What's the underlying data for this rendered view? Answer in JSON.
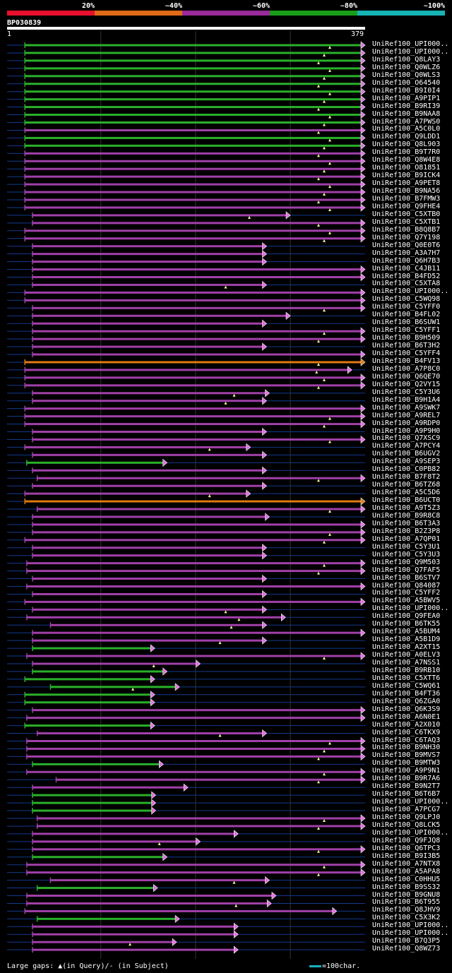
{
  "legend": {
    "segments": [
      {
        "label": "20%",
        "color": "#e8102e"
      },
      {
        "label": "~40%",
        "color": "#e06b16"
      },
      {
        "label": "~60%",
        "color": "#992a99"
      },
      {
        "label": "~80%",
        "color": "#1a9e1a"
      },
      {
        "label": "~100%",
        "color": "#16b4b4"
      }
    ]
  },
  "query": {
    "id": "BP030839",
    "start": "1",
    "end": "379"
  },
  "footer": {
    "gaps_text": "Large gaps: ▲(in Query)/- (in Subject)",
    "scale_text": "=100char."
  },
  "colors": {
    "green": "#2ab02a",
    "purple": "#a040a8",
    "orange": "#e07a10",
    "background": "#000000",
    "guide": "#123a8c"
  },
  "chart_data": {
    "type": "alignment",
    "query_length": 379,
    "hits": [
      {
        "name": "UniRef100_UPI000..",
        "s": 20,
        "e": 379,
        "c": "green",
        "tri": 1
      },
      {
        "name": "UniRef100_UPI000..",
        "s": 20,
        "e": 379,
        "c": "green",
        "tri": 1
      },
      {
        "name": "UniRef100_Q8LAY3",
        "s": 20,
        "e": 379,
        "c": "green",
        "tri": 1
      },
      {
        "name": "UniRef100_Q0WLZ6",
        "s": 20,
        "e": 379,
        "c": "green",
        "tri": 1
      },
      {
        "name": "UniRef100_Q0WLS3",
        "s": 20,
        "e": 379,
        "c": "green",
        "tri": 1
      },
      {
        "name": "UniRef100_O64540",
        "s": 20,
        "e": 379,
        "c": "green",
        "tri": 1
      },
      {
        "name": "UniRef100_B9I0I4",
        "s": 20,
        "e": 379,
        "c": "green",
        "tri": 1
      },
      {
        "name": "UniRef100_A9PIP1",
        "s": 20,
        "e": 379,
        "c": "green",
        "tri": 1
      },
      {
        "name": "UniRef100_B9RI39",
        "s": 20,
        "e": 379,
        "c": "green",
        "tri": 1
      },
      {
        "name": "UniRef100_B9NAA8",
        "s": 20,
        "e": 379,
        "c": "green",
        "tri": 1
      },
      {
        "name": "UniRef100_A7PWS0",
        "s": 20,
        "e": 379,
        "c": "green",
        "tri": 1
      },
      {
        "name": "UniRef100_A5C0L0",
        "s": 20,
        "e": 379,
        "c": "purple",
        "tri": 1
      },
      {
        "name": "UniRef100_Q9LDD1",
        "s": 20,
        "e": 379,
        "c": "green",
        "tri": 1
      },
      {
        "name": "UniRef100_Q8L903",
        "s": 20,
        "e": 379,
        "c": "green",
        "tri": 1
      },
      {
        "name": "UniRef100_B9T7R0",
        "s": 20,
        "e": 379,
        "c": "purple",
        "tri": 1
      },
      {
        "name": "UniRef100_Q8W4E8",
        "s": 20,
        "e": 379,
        "c": "purple",
        "tri": 1
      },
      {
        "name": "UniRef100_O81851",
        "s": 20,
        "e": 379,
        "c": "purple",
        "tri": 1
      },
      {
        "name": "UniRef100_B9ICK4",
        "s": 20,
        "e": 379,
        "c": "purple",
        "tri": 1
      },
      {
        "name": "UniRef100_A9PET8",
        "s": 20,
        "e": 379,
        "c": "purple",
        "tri": 1
      },
      {
        "name": "UniRef100_B9NA56",
        "s": 20,
        "e": 379,
        "c": "purple",
        "tri": 1
      },
      {
        "name": "UniRef100_B7FMW3",
        "s": 20,
        "e": 379,
        "c": "purple",
        "tri": 1
      },
      {
        "name": "UniRef100_Q9FHE4",
        "s": 20,
        "e": 379,
        "c": "purple",
        "tri": 1
      },
      {
        "name": "UniRef100_C5XTB0",
        "s": 28,
        "e": 300,
        "c": "purple",
        "tri": 1
      },
      {
        "name": "UniRef100_C5XTB1",
        "s": 28,
        "e": 379,
        "c": "purple",
        "tri": 1
      },
      {
        "name": "UniRef100_B8Q8B7",
        "s": 20,
        "e": 379,
        "c": "purple",
        "tri": 1
      },
      {
        "name": "UniRef100_Q7Y198",
        "s": 20,
        "e": 379,
        "c": "purple",
        "tri": 1
      },
      {
        "name": "UniRef100_Q0E0T6",
        "s": 28,
        "e": 275,
        "c": "purple",
        "tri": 0
      },
      {
        "name": "UniRef100_A3A7H7",
        "s": 28,
        "e": 275,
        "c": "purple",
        "tri": 0
      },
      {
        "name": "UniRef100_Q6H7B3",
        "s": 28,
        "e": 275,
        "c": "purple",
        "tri": 0
      },
      {
        "name": "UniRef100_C4JB11",
        "s": 28,
        "e": 379,
        "c": "purple",
        "tri": 0
      },
      {
        "name": "UniRef100_B4FD52",
        "s": 28,
        "e": 379,
        "c": "purple",
        "tri": 0
      },
      {
        "name": "UniRef100_C5XTA8",
        "s": 28,
        "e": 275,
        "c": "purple",
        "tri": 1
      },
      {
        "name": "UniRef100_UPI000..",
        "s": 20,
        "e": 379,
        "c": "purple",
        "tri": 0
      },
      {
        "name": "UniRef100_C5WQ98",
        "s": 20,
        "e": 379,
        "c": "purple",
        "tri": 0
      },
      {
        "name": "UniRef100_C5YFF0",
        "s": 28,
        "e": 379,
        "c": "purple",
        "tri": 1
      },
      {
        "name": "UniRef100_B4FL02",
        "s": 28,
        "e": 300,
        "c": "purple",
        "tri": 0
      },
      {
        "name": "UniRef100_B6SUW1",
        "s": 28,
        "e": 275,
        "c": "purple",
        "tri": 0
      },
      {
        "name": "UniRef100_C5YFF1",
        "s": 28,
        "e": 379,
        "c": "purple",
        "tri": 1
      },
      {
        "name": "UniRef100_B9H509",
        "s": 28,
        "e": 379,
        "c": "purple",
        "tri": 1
      },
      {
        "name": "UniRef100_B6T3H2",
        "s": 28,
        "e": 275,
        "c": "purple",
        "tri": 0
      },
      {
        "name": "UniRef100_C5YFF4",
        "s": 28,
        "e": 379,
        "c": "purple",
        "tri": 0
      },
      {
        "name": "UniRef100_B4FV13",
        "s": 20,
        "e": 379,
        "c": "orange",
        "tri": 1
      },
      {
        "name": "UniRef100_A7P8C0",
        "s": 20,
        "e": 365,
        "c": "purple",
        "tri": 1
      },
      {
        "name": "UniRef100_Q6QE70",
        "s": 20,
        "e": 379,
        "c": "purple",
        "tri": 1
      },
      {
        "name": "UniRef100_Q2VY15",
        "s": 20,
        "e": 379,
        "c": "purple",
        "tri": 1
      },
      {
        "name": "UniRef100_C5Y3U6",
        "s": 28,
        "e": 278,
        "c": "purple",
        "tri": 1
      },
      {
        "name": "UniRef100_B9H1A4",
        "s": 28,
        "e": 275,
        "c": "purple",
        "tri": 1
      },
      {
        "name": "UniRef100_A9SWK7",
        "s": 20,
        "e": 379,
        "c": "purple",
        "tri": 0
      },
      {
        "name": "UniRef100_A9REL7",
        "s": 20,
        "e": 379,
        "c": "purple",
        "tri": 1
      },
      {
        "name": "UniRef100_A9RDP0",
        "s": 20,
        "e": 379,
        "c": "purple",
        "tri": 1
      },
      {
        "name": "UniRef100_A9P9H0",
        "s": 28,
        "e": 275,
        "c": "purple",
        "tri": 0
      },
      {
        "name": "UniRef100_Q7XSC9",
        "s": 28,
        "e": 379,
        "c": "purple",
        "tri": 1
      },
      {
        "name": "UniRef100_A7PCY4",
        "s": 20,
        "e": 258,
        "c": "purple",
        "tri": 1
      },
      {
        "name": "UniRef100_B6UGV2",
        "s": 28,
        "e": 275,
        "c": "purple",
        "tri": 0
      },
      {
        "name": "UniRef100_A9SEP3",
        "s": 22,
        "e": 170,
        "c": "green",
        "tri": 0
      },
      {
        "name": "UniRef100_C0PB82",
        "s": 28,
        "e": 275,
        "c": "purple",
        "tri": 0
      },
      {
        "name": "UniRef100_B7F8T2",
        "s": 33,
        "e": 379,
        "c": "purple",
        "tri": 1
      },
      {
        "name": "UniRef100_B6TZ68",
        "s": 28,
        "e": 275,
        "c": "purple",
        "tri": 0
      },
      {
        "name": "UniRef100_A5C5D6",
        "s": 20,
        "e": 258,
        "c": "purple",
        "tri": 1
      },
      {
        "name": "UniRef100_B6UCT0",
        "s": 20,
        "e": 379,
        "c": "orange",
        "tri": 0
      },
      {
        "name": "UniRef100_A9T5Z3",
        "s": 33,
        "e": 379,
        "c": "purple",
        "tri": 1
      },
      {
        "name": "UniRef100_B9R8C8",
        "s": 28,
        "e": 278,
        "c": "purple",
        "tri": 0
      },
      {
        "name": "UniRef100_B6T3A3",
        "s": 28,
        "e": 379,
        "c": "purple",
        "tri": 0
      },
      {
        "name": "UniRef100_B2Z3P8",
        "s": 28,
        "e": 379,
        "c": "purple",
        "tri": 1
      },
      {
        "name": "UniRef100_A7QP01",
        "s": 20,
        "e": 379,
        "c": "purple",
        "tri": 1
      },
      {
        "name": "UniRef100_C5Y3U1",
        "s": 28,
        "e": 275,
        "c": "purple",
        "tri": 0
      },
      {
        "name": "UniRef100_C5Y3U3",
        "s": 28,
        "e": 275,
        "c": "purple",
        "tri": 0
      },
      {
        "name": "UniRef100_Q9M503",
        "s": 22,
        "e": 379,
        "c": "purple",
        "tri": 1
      },
      {
        "name": "UniRef100_Q7FAF5",
        "s": 22,
        "e": 379,
        "c": "purple",
        "tri": 1
      },
      {
        "name": "UniRef100_B6STV7",
        "s": 28,
        "e": 275,
        "c": "purple",
        "tri": 0
      },
      {
        "name": "UniRef100_Q84087",
        "s": 22,
        "e": 379,
        "c": "purple",
        "tri": 0
      },
      {
        "name": "UniRef100_C5YFF2",
        "s": 28,
        "e": 275,
        "c": "purple",
        "tri": 0
      },
      {
        "name": "UniRef100_A5BWV5",
        "s": 20,
        "e": 379,
        "c": "purple",
        "tri": 0
      },
      {
        "name": "UniRef100_UPI000..",
        "s": 28,
        "e": 275,
        "c": "purple",
        "tri": 1
      },
      {
        "name": "UniRef100_Q9FEA0",
        "s": 22,
        "e": 295,
        "c": "purple",
        "tri": 1
      },
      {
        "name": "UniRef100_B6TK55",
        "s": 47,
        "e": 275,
        "c": "purple",
        "tri": 1
      },
      {
        "name": "UniRef100_A5BUM4",
        "s": 28,
        "e": 379,
        "c": "purple",
        "tri": 0
      },
      {
        "name": "UniRef100_A5B1D9",
        "s": 28,
        "e": 275,
        "c": "purple",
        "tri": 1
      },
      {
        "name": "UniRef100_A2XT15",
        "s": 28,
        "e": 157,
        "c": "green",
        "tri": 0
      },
      {
        "name": "UniRef100_A0ELV3",
        "s": 22,
        "e": 379,
        "c": "purple",
        "tri": 1
      },
      {
        "name": "UniRef100_A7NSS1",
        "s": 28,
        "e": 205,
        "c": "purple",
        "tri": 1
      },
      {
        "name": "UniRef100_B9RB10",
        "s": 28,
        "e": 170,
        "c": "green",
        "tri": 0
      },
      {
        "name": "UniRef100_C5XTT6",
        "s": 20,
        "e": 157,
        "c": "green",
        "tri": 0
      },
      {
        "name": "UniRef100_C5WQ61",
        "s": 47,
        "e": 183,
        "c": "green",
        "tri": 1
      },
      {
        "name": "UniRef100_B4FT36",
        "s": 20,
        "e": 157,
        "c": "green",
        "tri": 0
      },
      {
        "name": "UniRef100_Q6ZGA0",
        "s": 20,
        "e": 157,
        "c": "green",
        "tri": 0
      },
      {
        "name": "UniRef100_Q6K3S9",
        "s": 28,
        "e": 379,
        "c": "purple",
        "tri": 0
      },
      {
        "name": "UniRef100_A6N0E1",
        "s": 22,
        "e": 379,
        "c": "purple",
        "tri": 0
      },
      {
        "name": "UniRef100_A2X010",
        "s": 20,
        "e": 157,
        "c": "green",
        "tri": 0
      },
      {
        "name": "UniRef100_C6TKX9",
        "s": 33,
        "e": 275,
        "c": "purple",
        "tri": 1
      },
      {
        "name": "UniRef100_C6TAQ3",
        "s": 22,
        "e": 379,
        "c": "purple",
        "tri": 1
      },
      {
        "name": "UniRef100_B9NH30",
        "s": 22,
        "e": 379,
        "c": "purple",
        "tri": 1
      },
      {
        "name": "UniRef100_B9MVS7",
        "s": 22,
        "e": 379,
        "c": "purple",
        "tri": 1
      },
      {
        "name": "UniRef100_B9MTW3",
        "s": 28,
        "e": 166,
        "c": "green",
        "tri": 0
      },
      {
        "name": "UniRef100_A9P9N1",
        "s": 22,
        "e": 379,
        "c": "purple",
        "tri": 1
      },
      {
        "name": "UniRef100_B9R7A6",
        "s": 53,
        "e": 379,
        "c": "purple",
        "tri": 1
      },
      {
        "name": "UniRef100_B9N2T7",
        "s": 28,
        "e": 192,
        "c": "purple",
        "tri": 0
      },
      {
        "name": "UniRef100_B6T6B7",
        "s": 28,
        "e": 158,
        "c": "green",
        "tri": 0
      },
      {
        "name": "UniRef100_UPI000..",
        "s": 28,
        "e": 158,
        "c": "green",
        "tri": 0
      },
      {
        "name": "UniRef100_A7PCG7",
        "s": 28,
        "e": 158,
        "c": "green",
        "tri": 0
      },
      {
        "name": "UniRef100_Q9LPJ0",
        "s": 33,
        "e": 379,
        "c": "purple",
        "tri": 1
      },
      {
        "name": "UniRef100_Q8LCK5",
        "s": 33,
        "e": 379,
        "c": "purple",
        "tri": 1
      },
      {
        "name": "UniRef100_UPI000..",
        "s": 28,
        "e": 245,
        "c": "purple",
        "tri": 0
      },
      {
        "name": "UniRef100_Q9FJQ8",
        "s": 28,
        "e": 205,
        "c": "purple",
        "tri": 1
      },
      {
        "name": "UniRef100_Q6TPC3",
        "s": 28,
        "e": 379,
        "c": "purple",
        "tri": 1
      },
      {
        "name": "UniRef100_B9I3B5",
        "s": 28,
        "e": 170,
        "c": "green",
        "tri": 0
      },
      {
        "name": "UniRef100_A7NTX8",
        "s": 22,
        "e": 379,
        "c": "purple",
        "tri": 1
      },
      {
        "name": "UniRef100_A5APA8",
        "s": 22,
        "e": 379,
        "c": "purple",
        "tri": 1
      },
      {
        "name": "UniRef100_C0HHU5",
        "s": 47,
        "e": 278,
        "c": "purple",
        "tri": 1
      },
      {
        "name": "UniRef100_B9SS32",
        "s": 33,
        "e": 160,
        "c": "green",
        "tri": 0
      },
      {
        "name": "UniRef100_B9GNU8",
        "s": 22,
        "e": 285,
        "c": "purple",
        "tri": 0
      },
      {
        "name": "UniRef100_B6T955",
        "s": 22,
        "e": 280,
        "c": "purple",
        "tri": 1
      },
      {
        "name": "UniRef100_Q8JHV9",
        "s": 20,
        "e": 349,
        "c": "purple",
        "tri": 0
      },
      {
        "name": "UniRef100_C5X3K2",
        "s": 33,
        "e": 183,
        "c": "green",
        "tri": 0
      },
      {
        "name": "UniRef100_UPI000..",
        "s": 28,
        "e": 245,
        "c": "purple",
        "tri": 0
      },
      {
        "name": "UniRef100_UPI000..",
        "s": 28,
        "e": 245,
        "c": "purple",
        "tri": 0
      },
      {
        "name": "UniRef100_B7Q3P5",
        "s": 28,
        "e": 180,
        "c": "purple",
        "tri": 1
      },
      {
        "name": "UniRef100_Q8WZ73",
        "s": 28,
        "e": 245,
        "c": "purple",
        "tri": 0
      }
    ]
  }
}
